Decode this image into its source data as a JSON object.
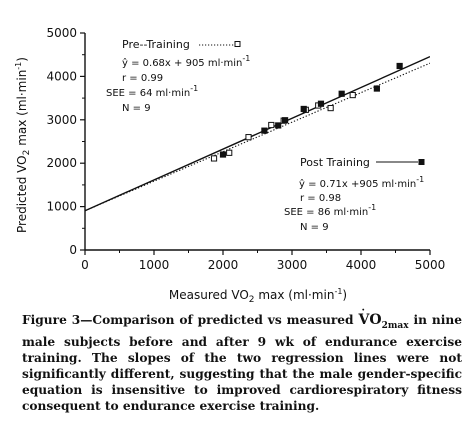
{
  "chart_data": {
    "type": "scatter",
    "ylabel_parts": {
      "pre": "Predicted ",
      "v": "V",
      "o": "O",
      "sub": "2",
      "post": " max  (ml·min",
      "sup": "-1",
      "end": ")"
    },
    "xlabel_parts": {
      "pre": "Measured ",
      "v": "V",
      "o": "O",
      "sub": "2",
      "post": " max  (ml·min",
      "sup": "-1",
      "end": ")"
    },
    "xlim": [
      0,
      5000
    ],
    "ylim": [
      0,
      5000
    ],
    "xticks": [
      "0",
      "1000",
      "2000",
      "3000",
      "4000",
      "5000"
    ],
    "yticks": [
      "0",
      "1000",
      "2000",
      "3000",
      "4000",
      "5000"
    ],
    "grid": false,
    "series": [
      {
        "name": "Pre--Training",
        "marker": "open-square",
        "line": "dotted",
        "intercept": 905,
        "slope": 0.68,
        "points": [
          [
            1870,
            2110
          ],
          [
            2090,
            2240
          ],
          [
            2370,
            2600
          ],
          [
            2700,
            2880
          ],
          [
            2880,
            2980
          ],
          [
            3200,
            3230
          ],
          [
            3380,
            3330
          ],
          [
            3560,
            3270
          ],
          [
            3880,
            3570
          ]
        ]
      },
      {
        "name": "Post Training",
        "marker": "filled-square",
        "line": "solid",
        "intercept": 905,
        "slope": 0.71,
        "points": [
          [
            2600,
            2750
          ],
          [
            2900,
            2990
          ],
          [
            3170,
            3250
          ],
          [
            3420,
            3370
          ],
          [
            3720,
            3600
          ],
          [
            4230,
            3720
          ],
          [
            4560,
            4240
          ],
          [
            2800,
            2870
          ],
          [
            2000,
            2200
          ]
        ]
      }
    ],
    "annotations": {
      "pre": {
        "legend": "Pre--Training",
        "equation_parts": {
          "y": "ŷ",
          "eq": " = 0.68x + 905 ml·min",
          "sup": "-1"
        },
        "r": "r = 0.99",
        "see_parts": {
          "txt": "SEE = 64 ml·min",
          "sup": "-1"
        },
        "n": "N = 9"
      },
      "post": {
        "legend": "Post Training",
        "equation_parts": {
          "y": "ŷ",
          "eq": " = 0.71x +905 ml·min",
          "sup": "-1"
        },
        "r": "r = 0.98",
        "see_parts": {
          "txt": "SEE = 86 ml·min",
          "sup": "-1"
        },
        "n": "N = 9"
      }
    }
  },
  "caption": {
    "label": "Figure 3",
    "sep": "—Comparison of predicted vs measured ",
    "v": "V",
    "o": "O",
    "sub": "2max",
    "rest": " in nine male subjects before and after 9 wk of endurance exercise training. The slopes of the two regression lines were not significantly different, suggesting that the male gender-specific equation is insensitive to improved cardiorespiratory fitness consequent to endurance exercise training."
  }
}
